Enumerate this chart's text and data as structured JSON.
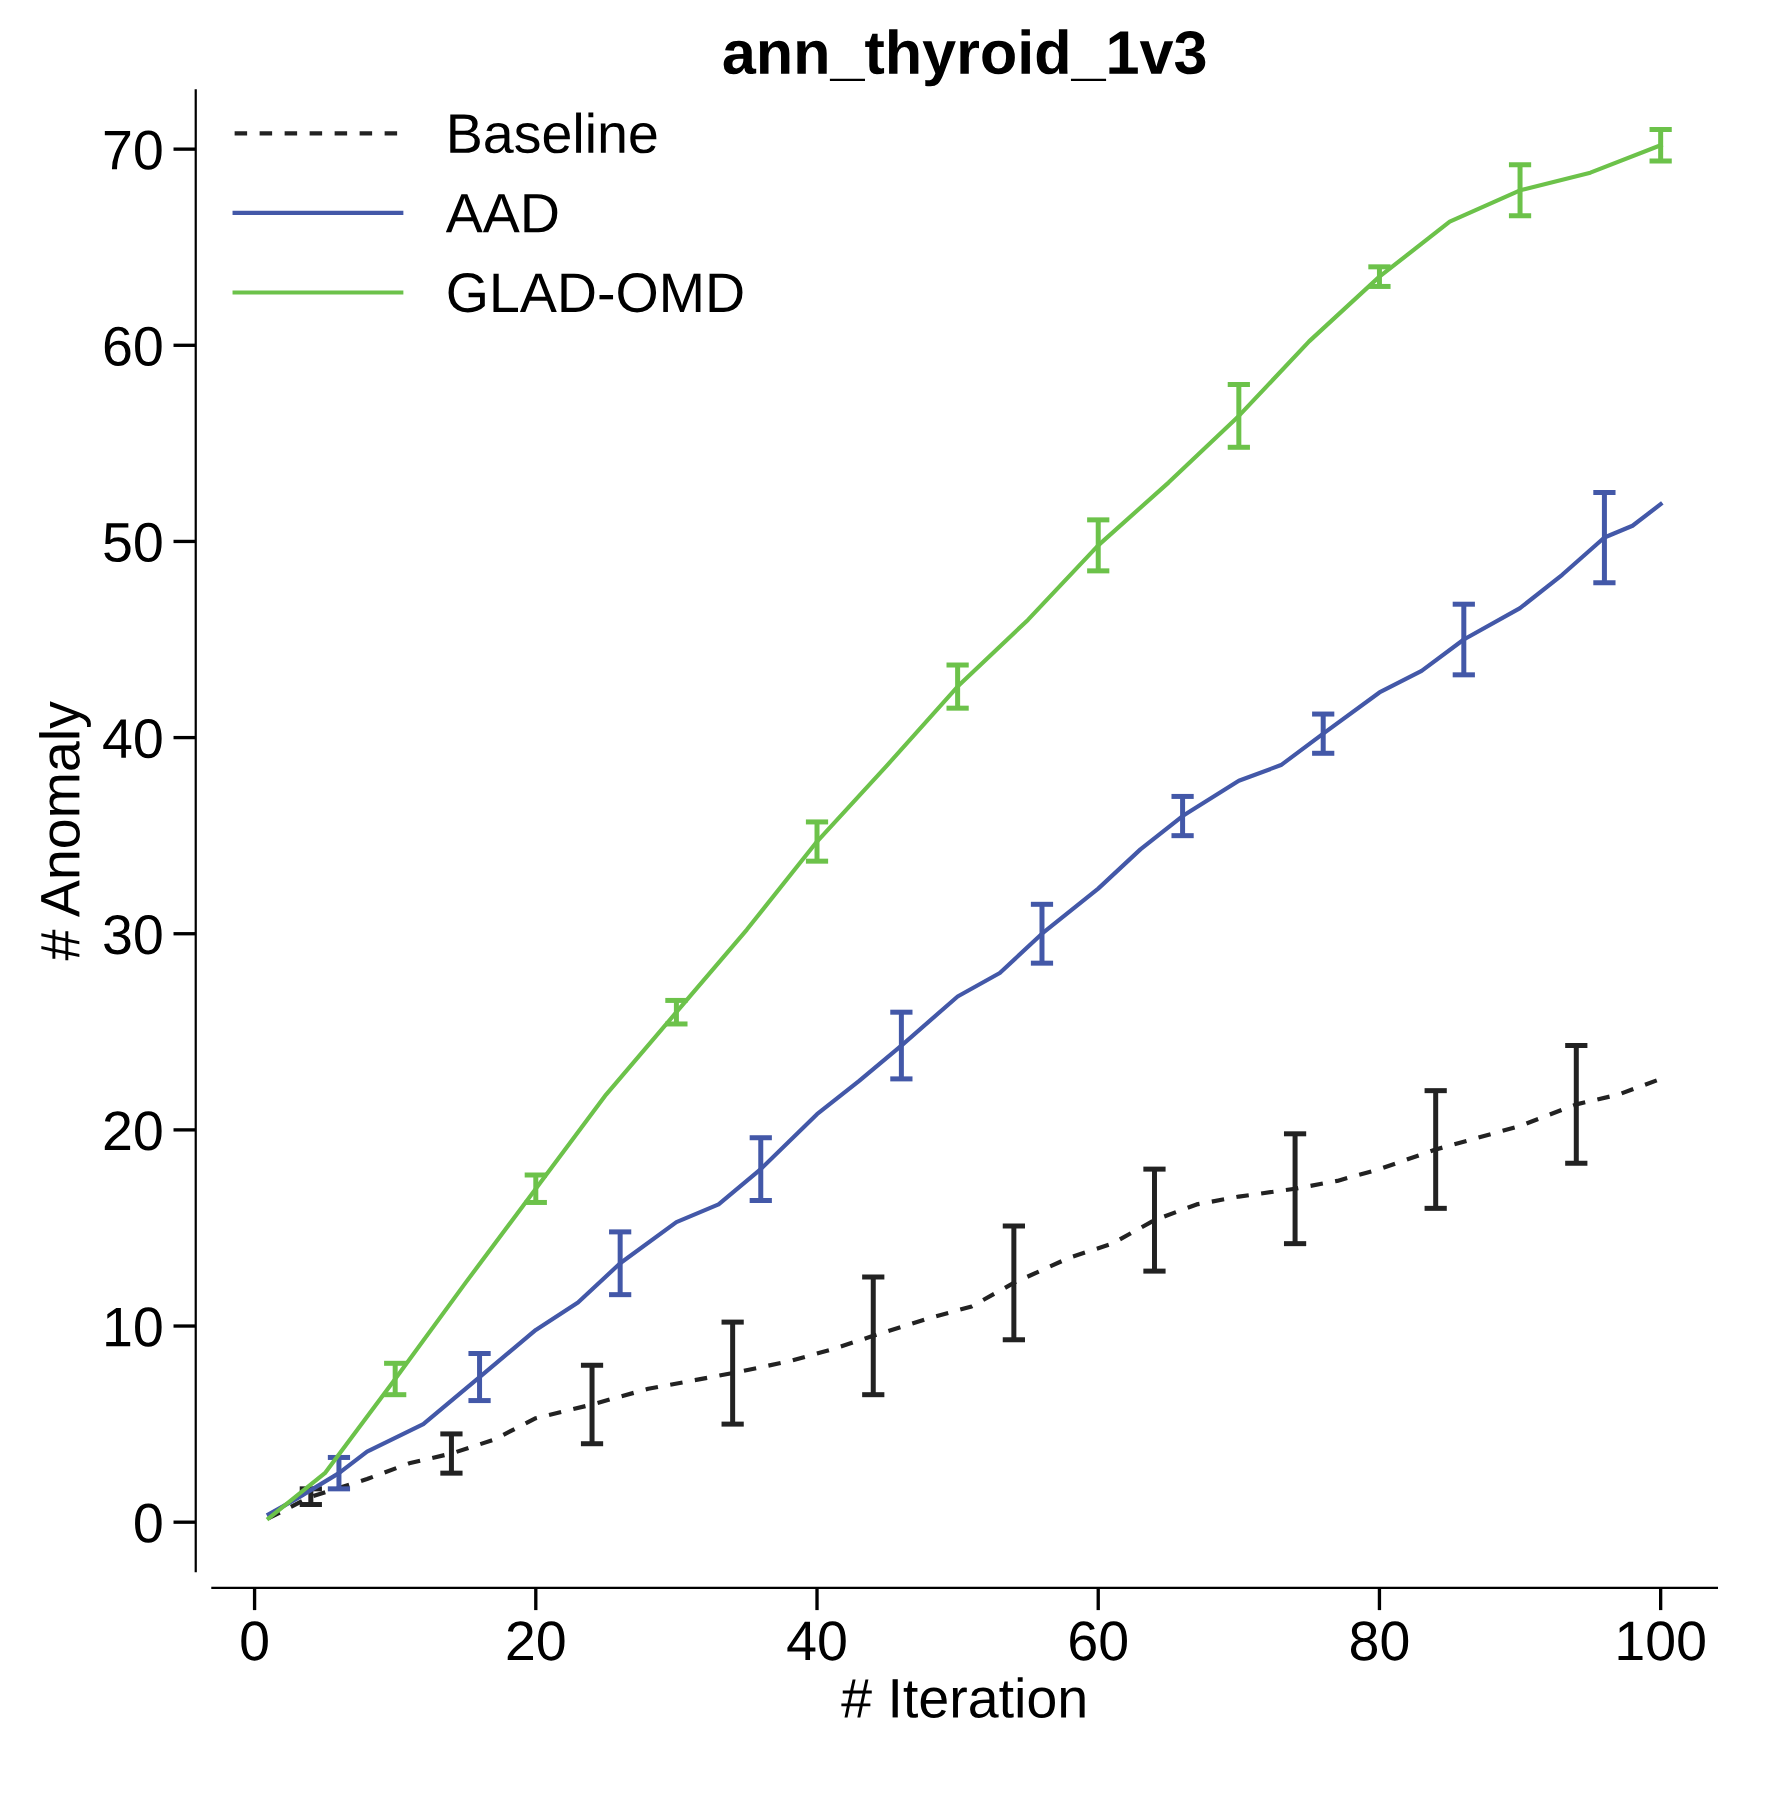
{
  "chart_data": {
    "type": "line",
    "title": "ann_thyroid_1v3",
    "xlabel": "# Iteration",
    "ylabel": "# Anomaly",
    "xlim": [
      -3,
      104
    ],
    "ylim": [
      -2.5,
      73
    ],
    "xticks": [
      0,
      20,
      40,
      60,
      80,
      100
    ],
    "yticks": [
      0,
      10,
      20,
      30,
      40,
      50,
      60,
      70
    ],
    "grid": false,
    "legend": "top left",
    "marker": "none",
    "series": [
      {
        "name": "Baseline",
        "color": "#222222",
        "line_style": "dashed",
        "x": [
          1,
          4,
          8,
          11,
          14,
          17,
          20,
          24,
          28,
          31,
          34,
          38,
          41,
          44,
          48,
          51,
          54,
          58,
          61,
          64,
          67,
          70,
          74,
          77,
          80,
          84,
          87,
          90,
          94,
          97,
          100
        ],
        "values": [
          0.2,
          1.3,
          2.2,
          3,
          3.5,
          4.2,
          5.3,
          6,
          6.8,
          7.2,
          7.6,
          8.2,
          8.8,
          9.5,
          10.4,
          11,
          12.2,
          13.5,
          14.2,
          15.4,
          16.2,
          16.6,
          17,
          17.4,
          18,
          19,
          19.6,
          20.2,
          21.3,
          21.8,
          22.6
        ],
        "errors": [
          null,
          0.4,
          null,
          null,
          1,
          null,
          null,
          2,
          null,
          null,
          2.6,
          null,
          null,
          3,
          null,
          null,
          2.9,
          null,
          null,
          2.6,
          null,
          null,
          2.8,
          null,
          null,
          3,
          null,
          null,
          3,
          null,
          null
        ]
      },
      {
        "name": "AAD",
        "color": "#4358a8",
        "line_style": "solid",
        "x": [
          1,
          3,
          6,
          8,
          12,
          16,
          20,
          23,
          26,
          30,
          33,
          36,
          40,
          43,
          46,
          50,
          53,
          56,
          60,
          63,
          66,
          70,
          73,
          76,
          80,
          83,
          86,
          90,
          93,
          96,
          98,
          100
        ],
        "values": [
          0.4,
          1.2,
          2.5,
          3.6,
          5,
          7.4,
          9.8,
          11.2,
          13.2,
          15.3,
          16.2,
          18,
          20.8,
          22.5,
          24.3,
          26.8,
          28,
          30,
          32.3,
          34.3,
          36,
          37.8,
          38.6,
          40.2,
          42.3,
          43.4,
          45,
          46.6,
          48.3,
          50.2,
          50.8,
          51.9
        ],
        "errors": [
          null,
          null,
          0.8,
          null,
          null,
          1.2,
          null,
          null,
          1.6,
          null,
          null,
          1.6,
          null,
          null,
          1.7,
          null,
          null,
          1.5,
          null,
          null,
          1,
          null,
          null,
          1,
          null,
          null,
          1.8,
          null,
          null,
          2.3,
          null,
          null
        ]
      },
      {
        "name": "GLAD-OMD",
        "color": "#6cc24a",
        "line_style": "solid",
        "x": [
          1,
          5,
          10,
          15,
          20,
          25,
          30,
          35,
          40,
          45,
          50,
          55,
          60,
          65,
          70,
          75,
          80,
          85,
          90,
          95,
          100
        ],
        "values": [
          0.2,
          2.5,
          7.3,
          12.2,
          17,
          21.8,
          26,
          30.2,
          34.7,
          38.6,
          42.6,
          46,
          49.8,
          53,
          56.4,
          60.2,
          63.5,
          66.3,
          67.9,
          68.8,
          70.2
        ],
        "errors": [
          null,
          null,
          0.8,
          null,
          0.7,
          null,
          0.6,
          null,
          1,
          null,
          1.1,
          null,
          1.3,
          null,
          1.6,
          null,
          0.5,
          null,
          1.3,
          null,
          0.8
        ]
      }
    ]
  }
}
